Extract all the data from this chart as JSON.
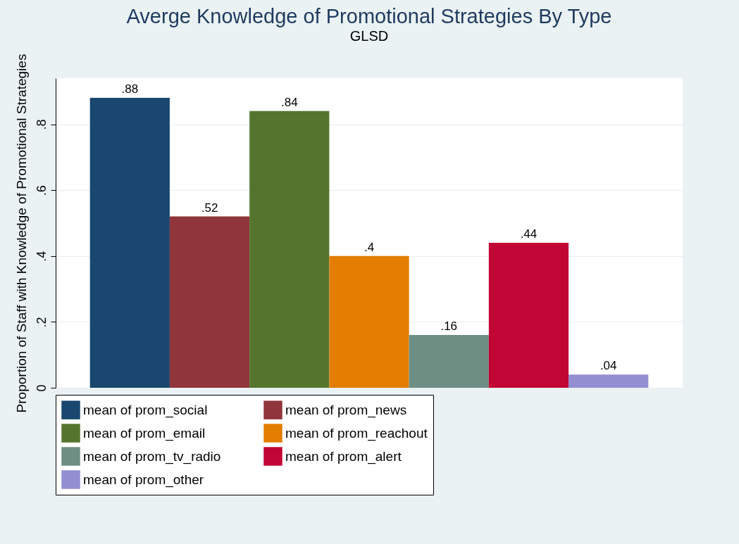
{
  "chart_data": {
    "type": "bar",
    "title": "Averge Knowledge of Promotional Strategies By Type",
    "subtitle": "GLSD",
    "ylabel": "Proportion of Staff with Knowledge of Promotional Strategies",
    "categories": [
      null
    ],
    "series": [
      {
        "name": "mean of prom_social",
        "color": "#1a476f",
        "values": [
          0.88
        ],
        "value_labels": [
          ".88"
        ]
      },
      {
        "name": "mean of prom_news",
        "color": "#90353b",
        "values": [
          0.52
        ],
        "value_labels": [
          ".52"
        ]
      },
      {
        "name": "mean of prom_email",
        "color": "#55752f",
        "values": [
          0.84
        ],
        "value_labels": [
          ".84"
        ]
      },
      {
        "name": "mean of prom_reachout",
        "color": "#e37e00",
        "values": [
          0.4
        ],
        "value_labels": [
          ".4"
        ]
      },
      {
        "name": "mean of prom_tv_radio",
        "color": "#6e8e84",
        "values": [
          0.16
        ],
        "value_labels": [
          ".16"
        ]
      },
      {
        "name": "mean of prom_alert",
        "color": "#c10534",
        "values": [
          0.44
        ],
        "value_labels": [
          ".44"
        ]
      },
      {
        "name": "mean of prom_other",
        "color": "#938dd2",
        "values": [
          0.04
        ],
        "value_labels": [
          ".04"
        ]
      }
    ],
    "ylim": [
      0,
      0.94
    ],
    "yticks": [
      0,
      {
        "value": 0.2,
        "label": ".2"
      },
      {
        "value": 0.4,
        "label": ".4"
      },
      {
        "value": 0.6,
        "label": ".6"
      },
      {
        "value": 0.8,
        "label": ".8"
      }
    ],
    "grid": "y",
    "legend": "bottom"
  }
}
